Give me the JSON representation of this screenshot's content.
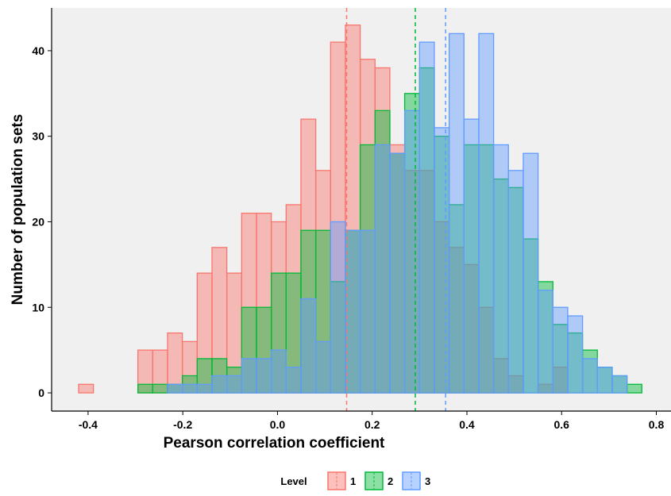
{
  "chart_data": {
    "type": "histogram",
    "x_label": "Pearson correlation coefficient",
    "y_label": "Number of population sets",
    "legend_title": "Level",
    "bins": [
      -0.42,
      -0.3887,
      -0.3574,
      -0.3261,
      -0.2948,
      -0.2635,
      -0.2322,
      -0.2009,
      -0.1696,
      -0.1383,
      -0.107,
      -0.0757,
      -0.0444,
      -0.0131,
      0.0182,
      0.0495,
      0.0808,
      0.1121,
      0.1434,
      0.1747,
      0.206,
      0.2373,
      0.2686,
      0.2999,
      0.3312,
      0.3625,
      0.3938,
      0.4251,
      0.4564,
      0.4877,
      0.519,
      0.5503,
      0.5816,
      0.6129,
      0.6442,
      0.6755,
      0.7068,
      0.7381,
      0.7694
    ],
    "series": [
      {
        "name": "1",
        "color": "#F8766D",
        "mean": 0.146,
        "values": [
          1,
          0,
          0,
          0,
          5,
          5,
          7,
          6,
          14,
          17,
          14,
          21,
          21,
          20,
          22,
          32,
          26,
          41,
          43,
          39,
          38,
          29,
          26,
          26,
          20,
          17,
          15,
          10,
          4,
          2,
          0,
          1,
          3,
          0,
          0,
          0,
          0,
          0
        ]
      },
      {
        "name": "2",
        "color": "#00BA38",
        "mean": 0.291,
        "values": [
          0,
          0,
          0,
          0,
          1,
          1,
          1,
          2,
          4,
          4,
          3,
          10,
          10,
          14,
          14,
          19,
          19,
          13,
          19,
          29,
          33,
          28,
          35,
          38,
          30,
          22,
          29,
          29,
          25,
          24,
          18,
          13,
          8,
          7,
          5,
          3,
          2,
          1
        ]
      },
      {
        "name": "3",
        "color": "#619CFF",
        "mean": 0.355,
        "values": [
          0,
          0,
          0,
          0,
          0,
          0,
          1,
          1,
          1,
          2,
          2,
          4,
          4,
          5,
          3,
          11,
          6,
          20,
          19,
          19,
          29,
          28,
          33,
          41,
          31,
          42,
          32,
          42,
          29,
          26,
          28,
          12,
          10,
          9,
          4,
          3,
          2,
          0
        ]
      }
    ],
    "xlim": [
      -0.477,
      0.831
    ],
    "ylim": [
      -2.13,
      45.0
    ],
    "xticks": [
      -0.4,
      -0.2,
      {
        "value": 0,
        "label": "0.0"
      },
      0.2,
      0.4,
      0.6,
      0.8
    ],
    "yticks": [
      0,
      10,
      20,
      30,
      40
    ]
  }
}
